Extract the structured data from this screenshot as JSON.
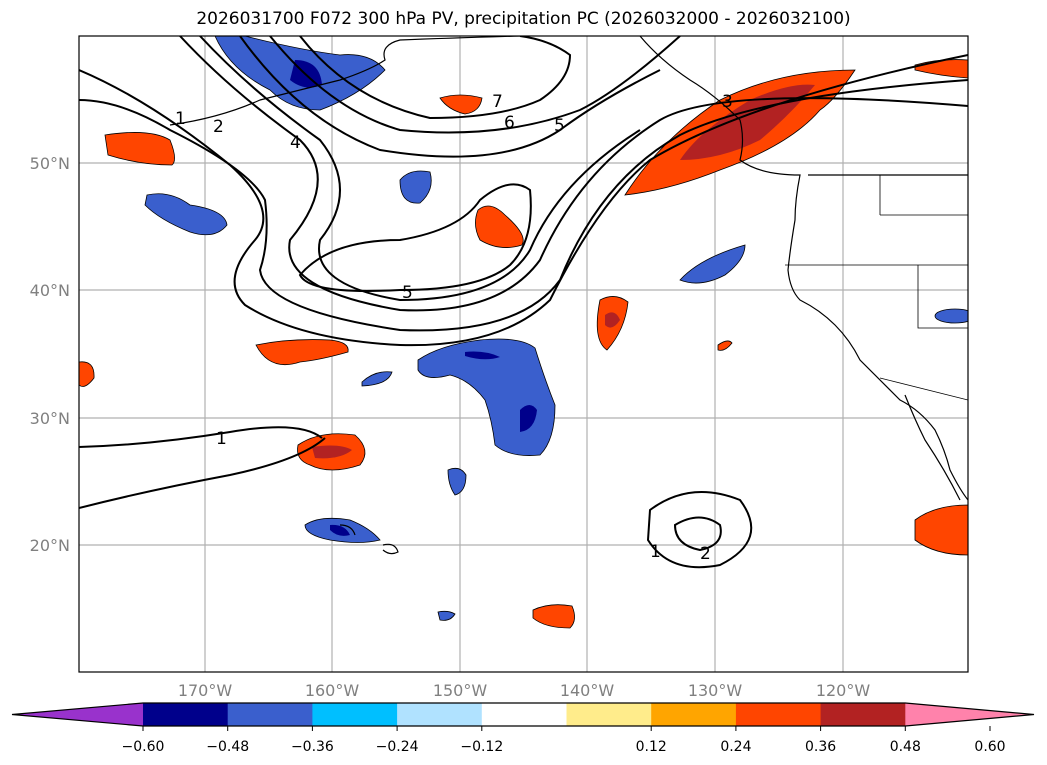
{
  "title": "2026031700 F072 300 hPa PV, precipitation PC (2026032000 - 2026032100)",
  "chart_data": {
    "type": "map-contour",
    "title": "2026031700 F072 300 hPa PV, precipitation PC (2026032000 - 2026032100)",
    "lon_range": [
      -180,
      -110
    ],
    "lat_range": [
      10,
      60
    ],
    "lat_ticks": [
      "50°N",
      "40°N",
      "30°N",
      "20°N"
    ],
    "lon_ticks": [
      "170°W",
      "160°W",
      "150°W",
      "140°W",
      "130°W",
      "120°W"
    ],
    "contour_variable": "300 hPa PV",
    "contour_labels": [
      "1",
      "2",
      "4",
      "7",
      "6",
      "5",
      "5",
      "3",
      "1",
      "1",
      "2"
    ],
    "filled_variable": "precipitation PC",
    "colorbar": {
      "ticks": [
        "-0.60",
        "-0.48",
        "-0.36",
        "-0.24",
        "-0.12",
        "0.12",
        "0.24",
        "0.36",
        "0.48",
        "0.60"
      ],
      "extend": "both",
      "colors": [
        "#9932cc",
        "#00008b",
        "#3a5fcd",
        "#00bfff",
        "#b0e2ff",
        "#ffffff",
        "#ffec8b",
        "#ffa500",
        "#ff4500",
        "#b22222",
        "#ff82ab"
      ]
    }
  }
}
